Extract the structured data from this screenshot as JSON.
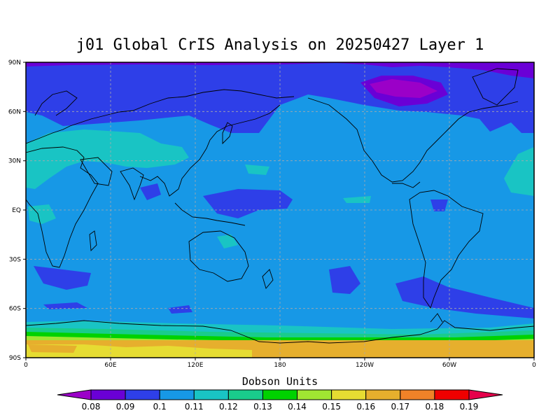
{
  "title": "j01 Global CrIS Analysis on 20250427 Layer 1",
  "colorbar": {
    "title": "Dobson Units",
    "levels": [
      "0.08",
      "0.09",
      "0.1",
      "0.11",
      "0.12",
      "0.13",
      "0.14",
      "0.15",
      "0.16",
      "0.17",
      "0.18",
      "0.19"
    ],
    "colors": [
      "#9b00c8",
      "#6a00d6",
      "#2e3fe8",
      "#1798e6",
      "#19c4c4",
      "#19cc8c",
      "#00d200",
      "#a0e632",
      "#e6dc32",
      "#e6af2d",
      "#f08228",
      "#f00000",
      "#e6004b"
    ]
  },
  "map": {
    "projection": "cylindrical equidistant, 0 to 360 longitude",
    "lat_labels": [
      "90N",
      "60N",
      "30N",
      "EQ",
      "30S",
      "60S",
      "90S"
    ],
    "lon_labels": [
      "0",
      "60E",
      "120E",
      "180",
      "120W",
      "60W",
      "0"
    ],
    "grid": true,
    "background_value_color": "#1798e6"
  }
}
